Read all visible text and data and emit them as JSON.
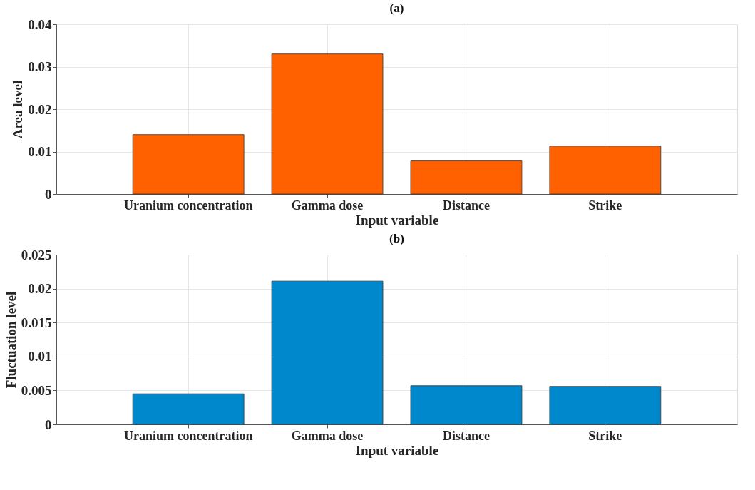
{
  "chart_data": [
    {
      "type": "bar",
      "title": "(a)",
      "xlabel": "Input variable",
      "ylabel": "Area level",
      "categories": [
        "Uranium concentration",
        "Gamma dose",
        "Distance",
        "Strike"
      ],
      "values": [
        0.014,
        0.033,
        0.0078,
        0.0113
      ],
      "color": "#ff6000",
      "ylim": [
        0,
        0.04
      ],
      "yticks": [
        0,
        0.01,
        0.02,
        0.03,
        0.04
      ],
      "grid": true
    },
    {
      "type": "bar",
      "title": "(b)",
      "xlabel": "Input variable",
      "ylabel": "Fluctuation level",
      "categories": [
        "Uranium concentration",
        "Gamma dose",
        "Distance",
        "Strike"
      ],
      "values": [
        0.0045,
        0.0211,
        0.0057,
        0.0056
      ],
      "color": "#0088cc",
      "ylim": [
        0,
        0.025
      ],
      "yticks": [
        0,
        0.005,
        0.01,
        0.015,
        0.02,
        0.025
      ],
      "grid": true
    }
  ]
}
